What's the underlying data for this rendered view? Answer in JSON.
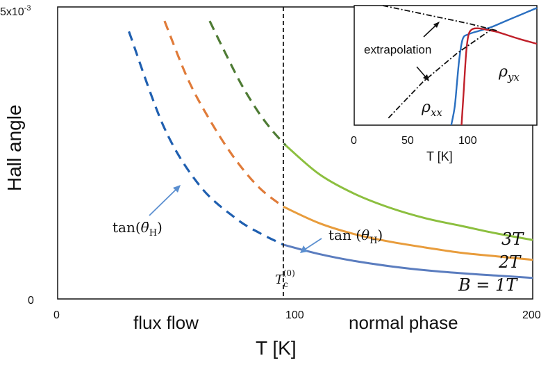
{
  "chart_data": [
    {
      "type": "line",
      "title": "",
      "xlabel": "T [K]",
      "ylabel": "Hall angle",
      "xlim": [
        0,
        200
      ],
      "ylim": [
        0,
        0.005
      ],
      "x_ticks": [
        "0",
        "100",
        "200"
      ],
      "y_ticks": [
        "0",
        "5x10-3"
      ],
      "y_top_tick": {
        "base": "5x10",
        "exp": "-3"
      },
      "regions": {
        "left": "flux flow",
        "right": "normal phase"
      },
      "tc": {
        "x": 95,
        "label_main": "T",
        "label_sub": "c",
        "label_sup": "(0)"
      },
      "annotations": {
        "tan_bar": {
          "prefix": "tan(",
          "symbol": "θ̄",
          "sub": "H",
          "suffix": ")"
        },
        "tan": {
          "prefix": "tan (",
          "symbol": "θ",
          "sub": "H",
          "suffix": ")"
        }
      },
      "series": [
        {
          "name": "B = 1T",
          "label": "B = 1T",
          "color_flux": "#1f5fb0",
          "color_normal": "#5b7dbf",
          "flux_x": [
            30,
            45,
            60,
            75,
            85,
            95
          ],
          "flux_y": [
            0.00458,
            0.00292,
            0.00193,
            0.00138,
            0.00113,
            0.00093
          ],
          "normal_x": [
            95,
            110,
            125,
            140,
            155,
            170,
            185,
            200
          ],
          "normal_y": [
            0.00093,
            0.00077,
            0.00065,
            0.00056,
            0.00049,
            0.00044,
            0.0004,
            0.00036
          ]
        },
        {
          "name": "2T",
          "label": "2T",
          "color_flux": "#e07b39",
          "color_normal": "#e89c3c",
          "flux_x": [
            45,
            55,
            65,
            75,
            85,
            95
          ],
          "flux_y": [
            0.00476,
            0.00375,
            0.003,
            0.00238,
            0.0019,
            0.00158
          ],
          "normal_x": [
            95,
            110,
            125,
            140,
            155,
            170,
            185,
            200
          ],
          "normal_y": [
            0.00158,
            0.0013,
            0.00111,
            0.00098,
            0.00088,
            0.00079,
            0.00073,
            0.00067
          ]
        },
        {
          "name": "3T",
          "label": "3T",
          "color_flux": "#4e7b34",
          "color_normal": "#8cbf3f",
          "flux_x": [
            64,
            70,
            77,
            84,
            90,
            96
          ],
          "flux_y": [
            0.00476,
            0.00426,
            0.0037,
            0.00323,
            0.0029,
            0.00263
          ],
          "normal_x": [
            96,
            110,
            125,
            140,
            155,
            170,
            185,
            200
          ],
          "normal_y": [
            0.00263,
            0.00214,
            0.0018,
            0.00156,
            0.00138,
            0.00125,
            0.00112,
            0.00101
          ]
        }
      ]
    },
    {
      "type": "line",
      "title": "",
      "xlabel": "T [K]",
      "ylabel": "",
      "xlim": [
        0,
        160
      ],
      "ylim": [
        0,
        1
      ],
      "x_ticks": [
        "0",
        "50",
        "100"
      ],
      "annotation": "extrapolation",
      "series": [
        {
          "name": "ρxx",
          "label_symbol": "ρ",
          "label_sub": "xx",
          "color": "#2a6fc0",
          "x": [
            85,
            88,
            90,
            92,
            95,
            100,
            110,
            120,
            130,
            140,
            150,
            160
          ],
          "y": [
            0.0,
            0.15,
            0.35,
            0.55,
            0.72,
            0.76,
            0.79,
            0.82,
            0.86,
            0.9,
            0.94,
            0.98
          ]
        },
        {
          "name": "ρyx",
          "label_symbol": "ρ",
          "label_sub": "yx",
          "color": "#c0202a",
          "x": [
            94,
            96,
            98,
            100,
            103,
            108,
            115,
            125,
            135,
            145,
            160
          ],
          "y": [
            0.0,
            0.3,
            0.6,
            0.75,
            0.8,
            0.81,
            0.8,
            0.78,
            0.75,
            0.72,
            0.68
          ]
        },
        {
          "name": "ext1",
          "label_symbol": "",
          "label_sub": "",
          "color": "#111111",
          "x": [
            25,
            60,
            100,
            125
          ],
          "y": [
            1.02,
            0.93,
            0.85,
            0.79
          ]
        },
        {
          "name": "ext2",
          "label_symbol": "",
          "label_sub": "",
          "color": "#111111",
          "x": [
            30,
            60,
            90,
            120
          ],
          "y": [
            0.06,
            0.36,
            0.6,
            0.8
          ]
        }
      ]
    }
  ]
}
